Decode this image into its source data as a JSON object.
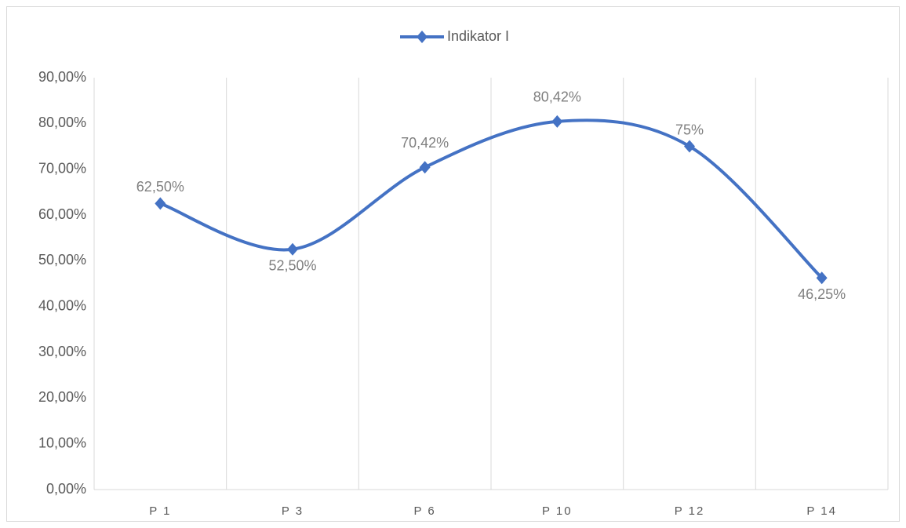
{
  "chart_data": {
    "type": "line",
    "smooth": true,
    "categories": [
      "P 1",
      "P 3",
      "P 6",
      "P 10",
      "P 12",
      "P 14"
    ],
    "series": [
      {
        "name": "Indikator I",
        "color": "#4472c4",
        "values": [
          62.5,
          52.5,
          70.42,
          80.42,
          75,
          46.25
        ],
        "value_labels": [
          "62,50%",
          "52,50%",
          "70,42%",
          "80,42%",
          "75%",
          "46,25%"
        ]
      }
    ],
    "ylim": [
      0,
      90
    ],
    "yticks": [
      {
        "value": 0,
        "label": "0,00%"
      },
      {
        "value": 10,
        "label": "10,00%"
      },
      {
        "value": 20,
        "label": "20,00%"
      },
      {
        "value": 30,
        "label": "30,00%"
      },
      {
        "value": 40,
        "label": "40,00%"
      },
      {
        "value": 50,
        "label": "50,00%"
      },
      {
        "value": 60,
        "label": "60,00%"
      },
      {
        "value": 70,
        "label": "70,00%"
      },
      {
        "value": 80,
        "label": "80,00%"
      },
      {
        "value": 90,
        "label": "90,00%"
      }
    ],
    "grid": "vertical",
    "legend": "top"
  }
}
